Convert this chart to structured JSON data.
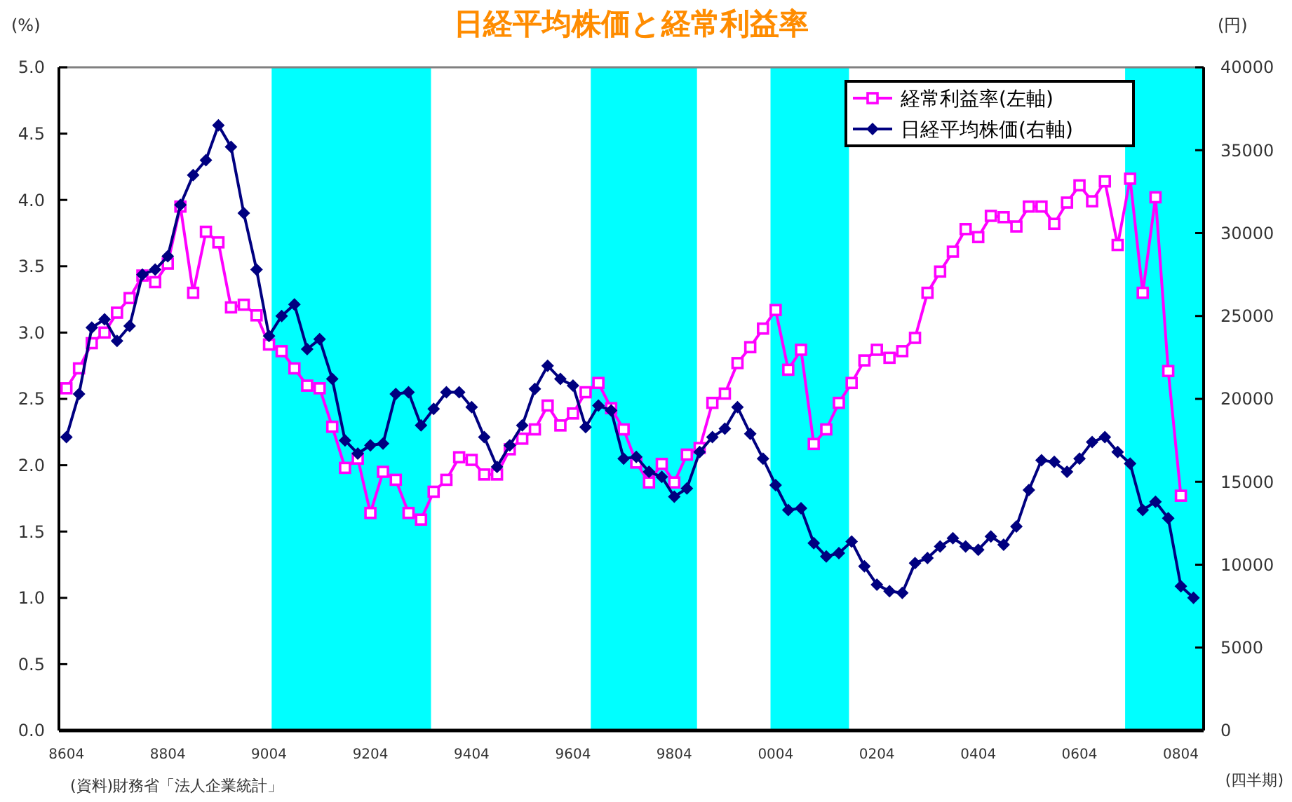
{
  "chart_data": {
    "type": "line",
    "title": "日経平均株価と経常利益率",
    "ylabel": "(%)",
    "y2label": "(円)",
    "xlabel": "(四半期)",
    "annotations": [
      "(資料)財務省「法人企業統計」"
    ],
    "x": [
      "1986-04",
      "1986-07",
      "1986-10",
      "1987-01",
      "1987-04",
      "1987-07",
      "1987-10",
      "1988-01",
      "1988-04",
      "1988-07",
      "1988-10",
      "1989-01",
      "1989-04",
      "1989-07",
      "1989-10",
      "1990-01",
      "1990-04",
      "1990-07",
      "1990-10",
      "1991-01",
      "1991-04",
      "1991-07",
      "1991-10",
      "1992-01",
      "1992-04",
      "1992-07",
      "1992-10",
      "1993-01",
      "1993-04",
      "1993-07",
      "1993-10",
      "1994-01",
      "1994-04",
      "1994-07",
      "1994-10",
      "1995-01",
      "1995-04",
      "1995-07",
      "1995-10",
      "1996-01",
      "1996-04",
      "1996-07",
      "1996-10",
      "1997-01",
      "1997-04",
      "1997-07",
      "1997-10",
      "1998-01",
      "1998-04",
      "1998-07",
      "1998-10",
      "1999-01",
      "1999-04",
      "1999-07",
      "1999-10",
      "2000-01",
      "2000-04",
      "2000-07",
      "2000-10",
      "2001-01",
      "2001-04",
      "2001-07",
      "2001-10",
      "2002-01",
      "2002-04",
      "2002-07",
      "2002-10",
      "2003-01",
      "2003-04",
      "2003-07",
      "2003-10",
      "2004-01",
      "2004-04",
      "2004-07",
      "2004-10",
      "2005-01",
      "2005-04",
      "2005-07",
      "2005-10",
      "2006-01",
      "2006-04",
      "2006-07",
      "2006-10",
      "2007-01",
      "2007-04",
      "2007-07",
      "2007-10",
      "2008-01",
      "2008-04",
      "2008-07"
    ],
    "xlim": [
      "1986-02-06",
      "2008-09-12"
    ],
    "xticks": [
      {
        "value": "1986-04",
        "label": "8604"
      },
      {
        "value": "1988-04",
        "label": "8804"
      },
      {
        "value": "1990-04",
        "label": "9004"
      },
      {
        "value": "1992-04",
        "label": "9204"
      },
      {
        "value": "1994-04",
        "label": "9404"
      },
      {
        "value": "1996-04",
        "label": "9604"
      },
      {
        "value": "1998-04",
        "label": "9804"
      },
      {
        "value": "2000-04",
        "label": "0004"
      },
      {
        "value": "2002-04",
        "label": "0204"
      },
      {
        "value": "2004-04",
        "label": "0404"
      },
      {
        "value": "2006-04",
        "label": "0604"
      },
      {
        "value": "2008-04",
        "label": "0804"
      }
    ],
    "ylim": [
      0,
      5
    ],
    "yticks": [
      {
        "value": 0,
        "label": "0.0"
      },
      {
        "value": 0.5,
        "label": "0.5"
      },
      {
        "value": 1,
        "label": "1.0"
      },
      {
        "value": 1.5,
        "label": "1.5"
      },
      {
        "value": 2,
        "label": "2.0"
      },
      {
        "value": 2.5,
        "label": "2.5"
      },
      {
        "value": 3,
        "label": "3.0"
      },
      {
        "value": 3.5,
        "label": "3.5"
      },
      {
        "value": 4,
        "label": "4.0"
      },
      {
        "value": 4.5,
        "label": "4.5"
      },
      {
        "value": 5,
        "label": "5.0"
      }
    ],
    "y2lim": [
      0,
      40000
    ],
    "y2ticks": [
      0,
      5000,
      10000,
      15000,
      20000,
      25000,
      30000,
      35000,
      40000
    ],
    "bands": [
      {
        "axis": "x",
        "from": "1990-04-20",
        "to": "1993-06-12",
        "color": "#00ffff"
      },
      {
        "axis": "x",
        "from": "1996-08-07",
        "to": "1998-09-12",
        "color": "#00ffff"
      },
      {
        "axis": "x",
        "from": "2000-02-24",
        "to": "2001-09-12",
        "color": "#00ffff"
      },
      {
        "axis": "x",
        "from": "2007-02-24",
        "to": "2008-09-12",
        "color": "#00ffff"
      }
    ],
    "legend": "top right",
    "grid": false,
    "line_style": "solid",
    "series": [
      {
        "name": "経常利益率(左軸)",
        "color": "#ff00ff",
        "marker": "square",
        "values": [
          2.58,
          2.73,
          2.92,
          3.0,
          3.15,
          3.26,
          3.43,
          3.38,
          3.52,
          3.95,
          3.3,
          3.76,
          3.68,
          3.19,
          3.21,
          3.13,
          2.91,
          2.86,
          2.73,
          2.6,
          2.58,
          2.29,
          1.98,
          2.05,
          1.64,
          1.95,
          1.89,
          1.64,
          1.59,
          1.8,
          1.89,
          2.06,
          2.04,
          1.93,
          1.93,
          2.12,
          2.2,
          2.27,
          2.45,
          2.3,
          2.39,
          2.55,
          2.62,
          2.43,
          2.27,
          2.02,
          1.87,
          2.01,
          1.87,
          2.08,
          2.13,
          2.47,
          2.54,
          2.77,
          2.89,
          3.03,
          3.17,
          2.72,
          2.87,
          2.16,
          2.27,
          2.47,
          2.62,
          2.79,
          2.87,
          2.81,
          2.86,
          2.96,
          3.3,
          3.46,
          3.61,
          3.78,
          3.72,
          3.88,
          3.87,
          3.8,
          3.95,
          3.95,
          3.82,
          3.98,
          4.11,
          3.99,
          4.14,
          3.66,
          4.16,
          3.3,
          4.02,
          2.71,
          1.77,
          null
        ]
      },
      {
        "name": "日経平均株価(右軸)",
        "color": "#000080",
        "marker": "diamond",
        "axis": "y2",
        "values": [
          17700,
          20300,
          24300,
          24800,
          23500,
          24400,
          27500,
          27800,
          28600,
          31700,
          33500,
          34400,
          36500,
          35200,
          31200,
          27800,
          23800,
          25000,
          25700,
          23000,
          23600,
          21200,
          17500,
          16700,
          17200,
          17300,
          20300,
          20400,
          18400,
          19400,
          20400,
          20400,
          19500,
          17700,
          15900,
          17200,
          18400,
          20600,
          22000,
          21200,
          20800,
          18300,
          19600,
          19300,
          16400,
          16500,
          15600,
          15300,
          14100,
          14600,
          16800,
          17700,
          18200,
          19500,
          17900,
          16400,
          14800,
          13300,
          13400,
          11300,
          10500,
          10700,
          11400,
          9900,
          8800,
          8400,
          8300,
          10100,
          10400,
          11100,
          11600,
          11100,
          10900,
          11700,
          11200,
          12300,
          14500,
          16300,
          16200,
          15600,
          16400,
          17400,
          17700,
          16800,
          16100,
          13300,
          13800,
          12800,
          8700,
          8000
        ]
      }
    ]
  }
}
